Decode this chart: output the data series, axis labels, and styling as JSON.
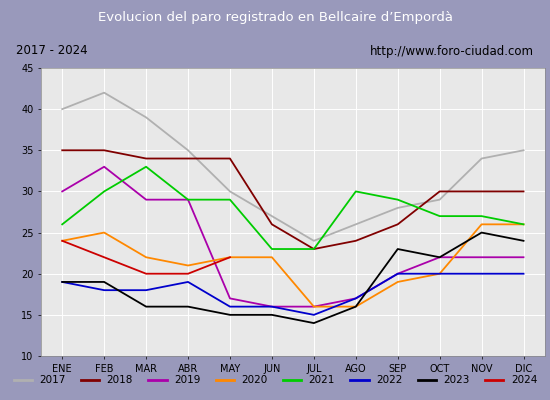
{
  "title": "Evolucion del paro registrado en Bellcaire d’Empordà",
  "subtitle_left": "2017 - 2024",
  "subtitle_right": "http://www.foro-ciudad.com",
  "xlabel_months": [
    "ENE",
    "FEB",
    "MAR",
    "ABR",
    "MAY",
    "JUN",
    "JUL",
    "AGO",
    "SEP",
    "OCT",
    "NOV",
    "DIC"
  ],
  "ylim": [
    10,
    45
  ],
  "yticks": [
    10,
    15,
    20,
    25,
    30,
    35,
    40,
    45
  ],
  "series": {
    "2017": {
      "color": "#b0b0b0",
      "data": [
        40,
        42,
        39,
        35,
        30,
        27,
        24,
        26,
        28,
        29,
        34,
        35
      ]
    },
    "2018": {
      "color": "#800000",
      "data": [
        35,
        35,
        34,
        34,
        34,
        26,
        23,
        24,
        26,
        30,
        30,
        30
      ]
    },
    "2019": {
      "color": "#aa00aa",
      "data": [
        30,
        33,
        29,
        29,
        17,
        16,
        16,
        17,
        20,
        22,
        22,
        22
      ]
    },
    "2020": {
      "color": "#ff8800",
      "data": [
        24,
        25,
        22,
        21,
        22,
        22,
        16,
        16,
        19,
        20,
        26,
        26
      ]
    },
    "2021": {
      "color": "#00cc00",
      "data": [
        26,
        30,
        33,
        29,
        29,
        23,
        23,
        30,
        29,
        27,
        27,
        26
      ]
    },
    "2022": {
      "color": "#0000cc",
      "data": [
        19,
        18,
        18,
        19,
        16,
        16,
        15,
        17,
        20,
        20,
        20,
        20
      ]
    },
    "2023": {
      "color": "#000000",
      "data": [
        19,
        19,
        16,
        16,
        15,
        15,
        14,
        16,
        23,
        22,
        25,
        24
      ]
    },
    "2024": {
      "color": "#cc0000",
      "data": [
        24,
        22,
        20,
        20,
        22,
        null,
        null,
        null,
        null,
        null,
        null,
        null
      ]
    }
  },
  "title_bg": "#4466bb",
  "title_color": "#ffffff",
  "subtitle_bg": "#f5f5f5",
  "plot_bg": "#e8e8e8",
  "outer_bg": "#9999bb",
  "legend_bg": "#f5f5f5"
}
